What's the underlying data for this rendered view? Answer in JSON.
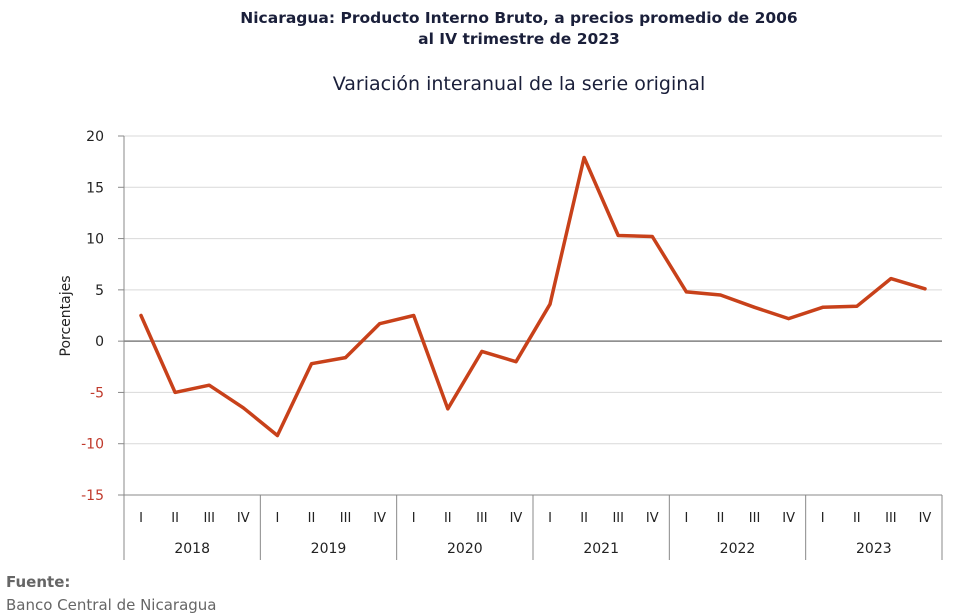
{
  "chart_data": {
    "type": "line",
    "title": [
      "Nicaragua: Producto Interno Bruto, a precios promedio de 2006",
      "al IV trimestre de 2023"
    ],
    "subtitle": "Variación interanual de la serie original",
    "ylabel": "Porcentajes",
    "ylim": [
      -15,
      20
    ],
    "yticks": [
      20,
      15,
      10,
      5,
      0,
      -5,
      -10,
      -15
    ],
    "quarters": [
      "I",
      "II",
      "III",
      "IV"
    ],
    "years": [
      "2018",
      "2019",
      "2020",
      "2021",
      "2022",
      "2023"
    ],
    "grid": true,
    "series": [
      {
        "color": "#c8411a",
        "values": [
          2.5,
          -5.0,
          -4.3,
          -6.5,
          -9.2,
          -2.2,
          -1.6,
          1.7,
          2.5,
          -6.6,
          -1.0,
          -2.0,
          3.6,
          17.9,
          10.3,
          10.2,
          4.8,
          4.5,
          3.3,
          2.2,
          3.3,
          3.4,
          6.1,
          5.1
        ]
      }
    ],
    "axis_color": "#888888",
    "negative_tick_color": "#c0392b"
  },
  "source": {
    "label": "Fuente:",
    "text": "Banco Central de Nicaragua"
  }
}
